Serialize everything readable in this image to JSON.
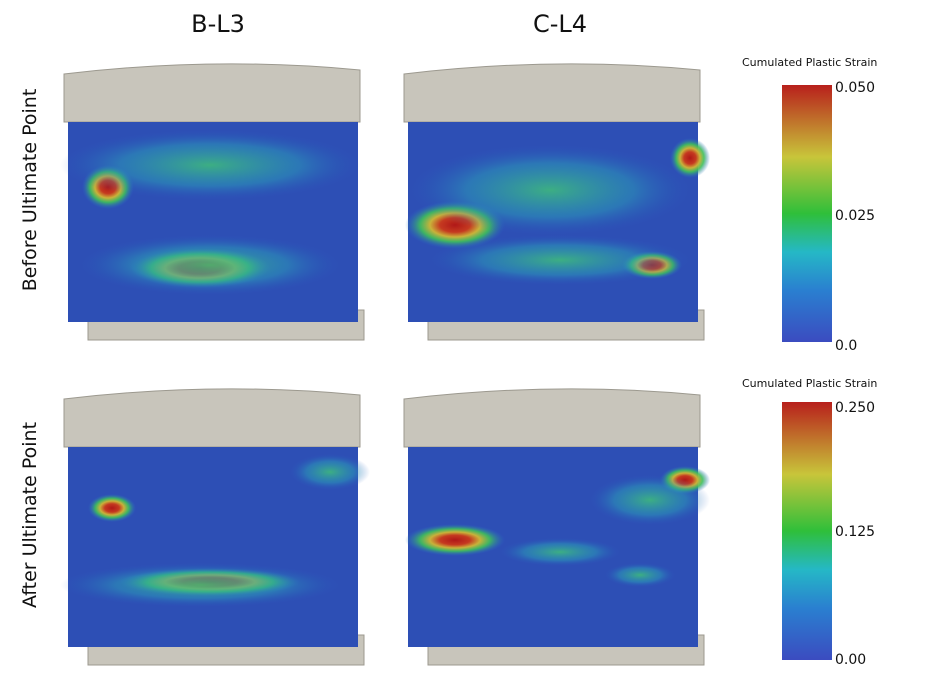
{
  "columns": [
    "B-L3",
    "C-L4"
  ],
  "rows": [
    "Before Ultimate Point",
    "After Ultimate Point"
  ],
  "colorbars": [
    {
      "title": "Cumulated Plastic Strain",
      "ticks": [
        "0.050",
        "0.025",
        "0.0"
      ]
    },
    {
      "title": "Cumulated Plastic Strain",
      "ticks": [
        "0.250",
        "0.125",
        "0.00"
      ]
    }
  ]
}
